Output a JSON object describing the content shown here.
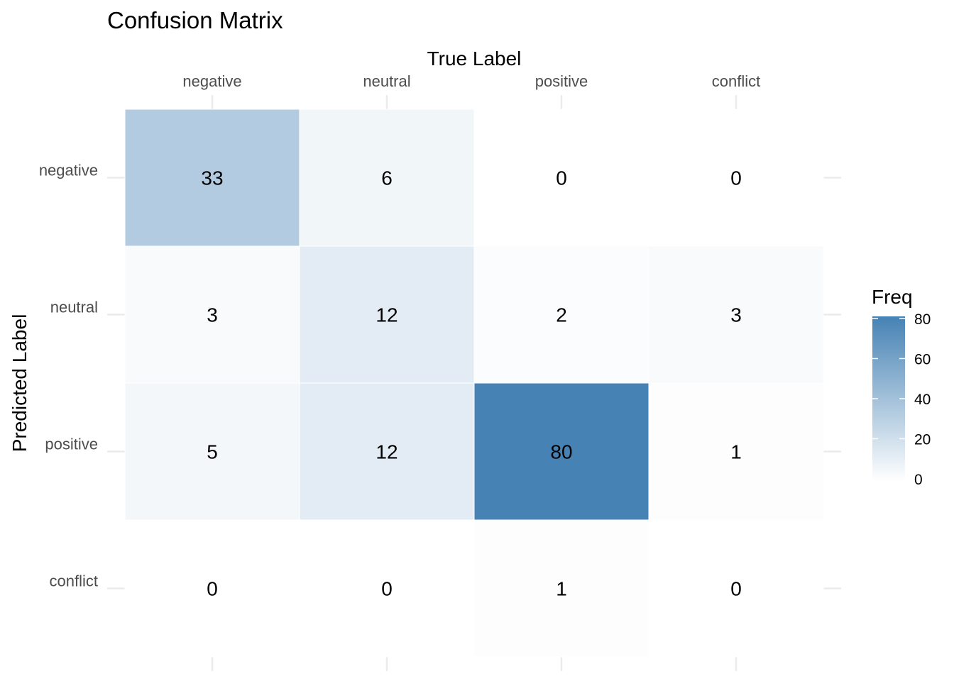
{
  "chart_data": {
    "type": "heatmap",
    "title": "Confusion Matrix",
    "xlabel": "True Label",
    "ylabel": "Predicted Label",
    "x_categories": [
      "negative",
      "neutral",
      "positive",
      "conflict"
    ],
    "y_categories": [
      "negative",
      "neutral",
      "positive",
      "conflict"
    ],
    "values": [
      [
        33,
        6,
        0,
        0
      ],
      [
        3,
        12,
        2,
        3
      ],
      [
        5,
        12,
        80,
        1
      ],
      [
        0,
        0,
        1,
        0
      ]
    ],
    "x_axis_position": "top",
    "grid": true,
    "color_scale": {
      "low": "#ffffff",
      "high": "#4682b4",
      "min": 0,
      "max": 80
    },
    "legend": {
      "title": "Freq",
      "ticks": [
        0,
        20,
        40,
        60,
        80
      ],
      "placement": "right"
    }
  }
}
